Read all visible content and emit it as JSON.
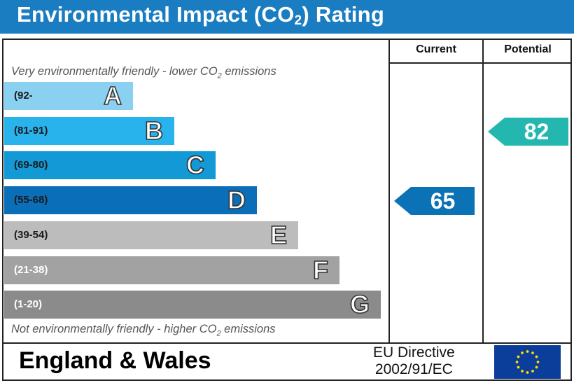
{
  "title": {
    "pre": "Environmental Impact (CO",
    "sub": "2",
    "post": ") Rating"
  },
  "columns": {
    "current": "Current",
    "potential": "Potential"
  },
  "top_note": {
    "pre": "Very environmentally friendly - lower CO",
    "sub": "2",
    "post": " emissions"
  },
  "bottom_note": {
    "pre": "Not environmentally friendly - higher CO",
    "sub": "2",
    "post": " emissions"
  },
  "footer": {
    "region": "England & Wales",
    "directive_line1": "EU Directive",
    "directive_line2": "2002/91/EC"
  },
  "colors": {
    "title_bg": "#1a7dc2",
    "flag_bg": "#0b3d9a",
    "flag_stars": "#ffdd00"
  },
  "icons": {
    "flag": "eu-flag-icon"
  },
  "chart_data": {
    "type": "bar",
    "categories": [
      "A",
      "B",
      "C",
      "D",
      "E",
      "F",
      "G"
    ],
    "ranges": [
      "(92-",
      "(81-91)",
      "(69-80)",
      "(55-68)",
      "(39-54)",
      "(21-38)",
      "(1-20)"
    ],
    "band_colors": [
      "#8ad0f0",
      "#29b3ec",
      "#1299d6",
      "#0a6fb8",
      "#bcbcbc",
      "#a2a2a2",
      "#8b8b8b"
    ],
    "range_text_colors": [
      "#1a1a1a",
      "#1a1a1a",
      "#1a1a1a",
      "#1a1a1a",
      "#1a1a1a",
      "#ffffff",
      "#ffffff"
    ],
    "current": {
      "value": 65,
      "band": "D",
      "color": "#0a72b5"
    },
    "potential": {
      "value": 82,
      "band": "B",
      "color": "#23b7b0"
    }
  }
}
